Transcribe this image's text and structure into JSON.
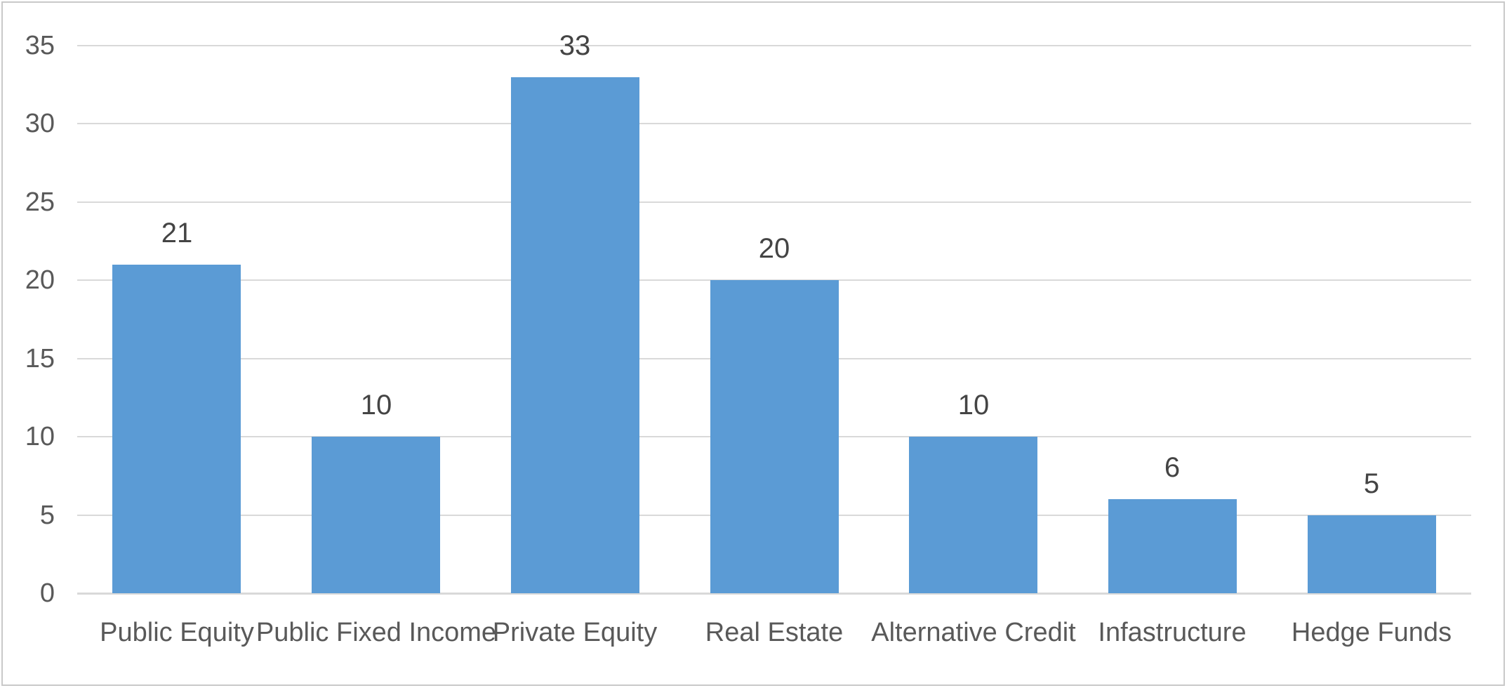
{
  "chart_data": {
    "type": "bar",
    "title": "",
    "xlabel": "",
    "ylabel": "",
    "categories": [
      "Public Equity",
      "Public Fixed Income",
      "Private Equity",
      "Real Estate",
      "Alternative Credit",
      "Infastructure",
      "Hedge Funds"
    ],
    "values": [
      21,
      10,
      33,
      20,
      10,
      6,
      5
    ],
    "data_labels": [
      "21",
      "10",
      "33",
      "20",
      "10",
      "6",
      "5"
    ],
    "ylim": [
      0,
      35
    ],
    "yticks": [
      0,
      5,
      10,
      15,
      20,
      25,
      30,
      35
    ],
    "grid": true,
    "legend": false,
    "series_name": "",
    "colors": {
      "bar_fill": "#5b9bd5",
      "gridline": "#d9d9d9",
      "axis_line": "#d9d9d9",
      "tick_label_text": "#595959",
      "category_label_text": "#595959",
      "data_label_text": "#444444",
      "chart_border": "#c9c9c9",
      "background": "#ffffff"
    }
  }
}
